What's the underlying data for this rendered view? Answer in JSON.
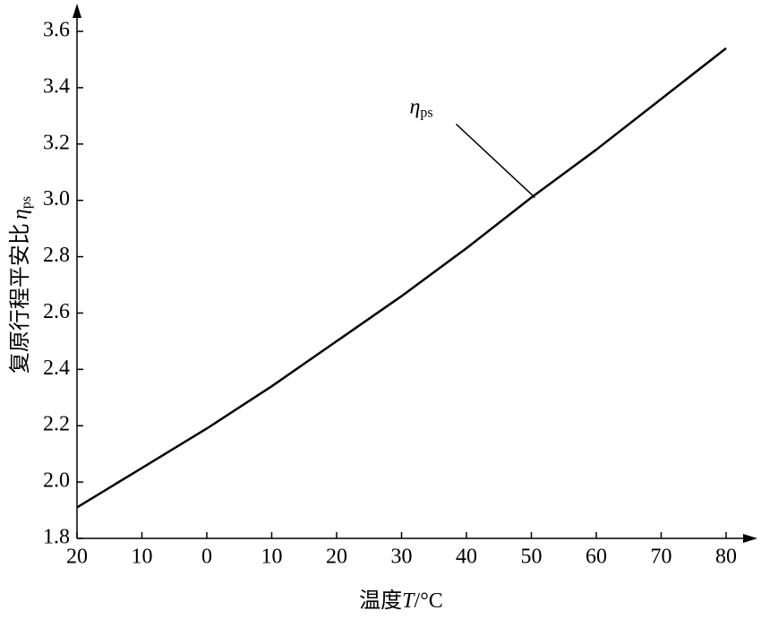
{
  "chart_data": {
    "type": "line",
    "xlabel": {
      "text": "温度",
      "var": "T",
      "unit": "/°C"
    },
    "ylabel": {
      "text": "复原行程平安比",
      "var": "η",
      "sub": "ps"
    },
    "annotation": {
      "var": "η",
      "sub": "ps",
      "x": 50
    },
    "x": [
      -20,
      -10,
      0,
      10,
      20,
      30,
      40,
      50,
      60,
      70,
      80
    ],
    "series": [
      {
        "name": "ηps",
        "color": "#000000",
        "values": [
          1.91,
          2.05,
          2.19,
          2.34,
          2.5,
          2.66,
          2.83,
          3.01,
          3.18,
          3.36,
          3.54
        ]
      }
    ],
    "xlim": [
      -20,
      80
    ],
    "xticks": [
      {
        "value": -20,
        "label": "20"
      },
      {
        "value": -10,
        "label": "10"
      },
      0,
      10,
      20,
      30,
      40,
      50,
      60,
      70,
      80
    ],
    "ylim": [
      1.8,
      3.6
    ],
    "yticks": [
      1.8,
      {
        "value": 2,
        "label": "2.0"
      },
      2.2,
      2.4,
      2.6,
      2.8,
      {
        "value": 3,
        "label": "3.0"
      },
      3.2,
      3.4,
      3.6
    ],
    "grid": false
  }
}
